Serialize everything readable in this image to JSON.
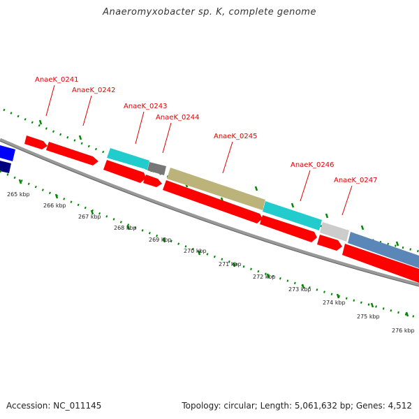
{
  "title": "Anaeromyxobacter sp. K, complete genome",
  "footer": {
    "accession": "Accession: NC_011145",
    "summary": "Topology: circular; Length: 5,061,632 bp; Genes: 4,512"
  },
  "colors": {
    "cds_red": "#ff0000",
    "cyan": "#22cccc",
    "olive": "#bbb37a",
    "gray_dark": "#777777",
    "gray_light": "#cccccc",
    "steel_blue": "#5b86b8",
    "blue": "#0000ff",
    "navy": "#000080",
    "backbone": "#888888",
    "tick_green": "#008800",
    "label_red": "#dd0000"
  },
  "gene_labels": [
    "AnaeK_0241",
    "AnaeK_0242",
    "AnaeK_0243",
    "AnaeK_0244",
    "AnaeK_0245",
    "AnaeK_0246",
    "AnaeK_0247"
  ],
  "kbp_labels": [
    "265 kbp",
    "266 kbp",
    "267 kbp",
    "268 kbp",
    "269 kbp",
    "270 kbp",
    "271 kbp",
    "272 kbp",
    "273 kbp",
    "274 kbp",
    "275 kbp",
    "276 kbp"
  ]
}
